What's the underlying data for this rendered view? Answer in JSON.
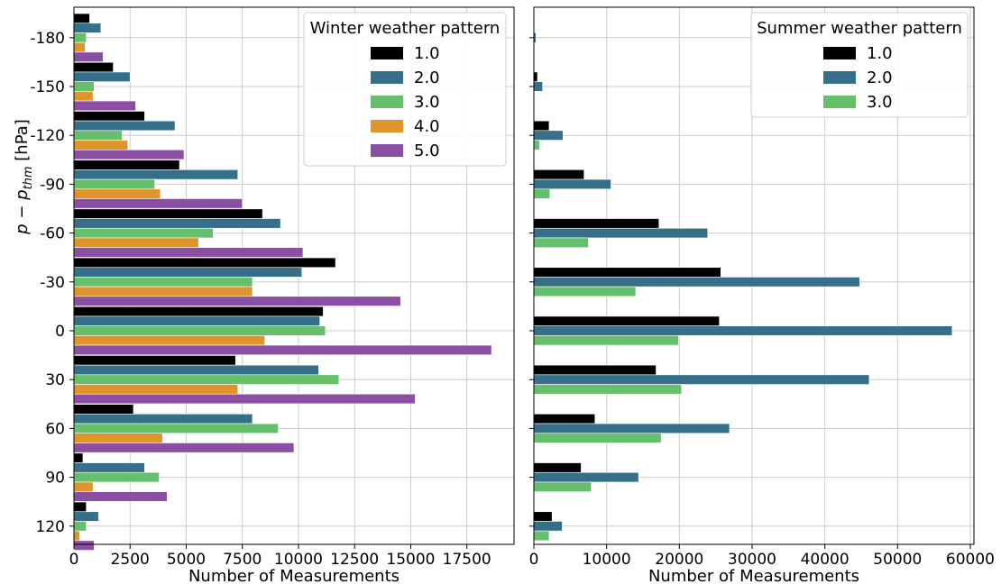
{
  "chart_data": [
    {
      "type": "bar",
      "orientation": "horizontal",
      "categories": [
        "-180",
        "-150",
        "-120",
        "-90",
        "-60",
        "-30",
        "0",
        "30",
        "60",
        "90",
        "120"
      ],
      "xlabel": "Number of Measurements",
      "ylabel": "p − p_thm [hPa]",
      "ylabel_parts": {
        "p1": "p",
        "minus": " − ",
        "p2": "p",
        "sub": "thm",
        "unit": " [hPa]"
      },
      "xlim": [
        0,
        19600
      ],
      "xticks": [
        0,
        2500,
        5000,
        7500,
        10000,
        12500,
        15000,
        17500
      ],
      "xtick_labels": [
        "0",
        "2500",
        "5000",
        "7500",
        "10000",
        "12500",
        "15000",
        "17500"
      ],
      "grid": true,
      "legend": {
        "title": "Winter weather pattern",
        "position": "top-right"
      },
      "series": [
        {
          "name": "1.0",
          "color": "#000000",
          "values": [
            700,
            1750,
            3150,
            4700,
            8400,
            11650,
            11100,
            7200,
            2650,
            400,
            550
          ]
        },
        {
          "name": "2.0",
          "color": "#366f89",
          "values": [
            1200,
            2500,
            4500,
            7300,
            9200,
            10150,
            10950,
            10900,
            7950,
            3150,
            1100
          ]
        },
        {
          "name": "3.0",
          "color": "#66bf6b",
          "values": [
            550,
            900,
            2150,
            3600,
            6200,
            7950,
            11200,
            11800,
            9100,
            3800,
            550
          ]
        },
        {
          "name": "4.0",
          "color": "#e0952c",
          "values": [
            500,
            850,
            2400,
            3850,
            5550,
            7950,
            8500,
            7300,
            3950,
            850,
            250
          ]
        },
        {
          "name": "5.0",
          "color": "#8a4ea3",
          "values": [
            1300,
            2750,
            4900,
            7500,
            10200,
            14550,
            18600,
            15200,
            9800,
            4150,
            900
          ]
        }
      ]
    },
    {
      "type": "bar",
      "orientation": "horizontal",
      "categories": [
        "-180",
        "-150",
        "-120",
        "-90",
        "-60",
        "-30",
        "0",
        "30",
        "60",
        "90",
        "120"
      ],
      "xlabel": "Number of Measurements",
      "ylabel": "",
      "xlim": [
        0,
        60500
      ],
      "xticks": [
        0,
        10000,
        20000,
        30000,
        40000,
        50000,
        60000
      ],
      "xtick_labels": [
        "0",
        "10000",
        "20000",
        "30000",
        "40000",
        "50000",
        "60000"
      ],
      "grid": true,
      "legend": {
        "title": "Summer weather pattern",
        "position": "top-right"
      },
      "series": [
        {
          "name": "1.0",
          "color": "#000000",
          "values": [
            0,
            500,
            2100,
            6900,
            17200,
            25700,
            25500,
            16800,
            8400,
            6500,
            2500
          ]
        },
        {
          "name": "2.0",
          "color": "#366f89",
          "values": [
            300,
            1200,
            4000,
            10600,
            23900,
            44800,
            57500,
            46100,
            26900,
            14400,
            3900
          ]
        },
        {
          "name": "3.0",
          "color": "#66bf6b",
          "values": [
            0,
            0,
            800,
            2200,
            7500,
            14000,
            19900,
            20300,
            17500,
            7900,
            2100
          ]
        }
      ]
    }
  ]
}
